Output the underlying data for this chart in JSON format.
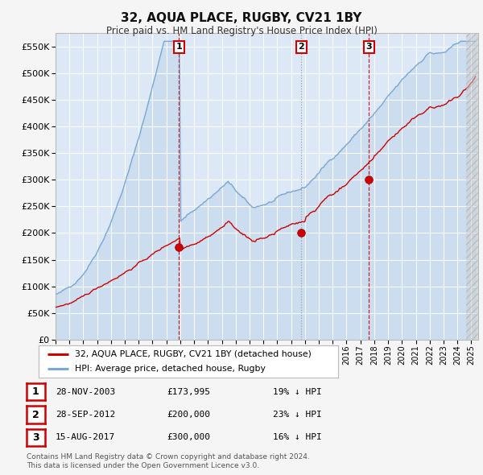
{
  "title": "32, AQUA PLACE, RUGBY, CV21 1BY",
  "subtitle": "Price paid vs. HM Land Registry's House Price Index (HPI)",
  "ylim": [
    0,
    575000
  ],
  "yticks": [
    0,
    50000,
    100000,
    150000,
    200000,
    250000,
    300000,
    350000,
    400000,
    450000,
    500000,
    550000
  ],
  "xlim_start": 1995.0,
  "xlim_end": 2025.5,
  "fig_bg": "#f5f5f5",
  "plot_bg": "#dce8f5",
  "grid_color": "#ffffff",
  "hpi_line_color": "#7aa8d2",
  "hpi_fill_color": "#c5d9ed",
  "price_line_color": "#cc0000",
  "sale_marker_color": "#cc0000",
  "sales": [
    {
      "date_num": 2003.91,
      "price": 173995,
      "label": "1",
      "vcolor": "#cc0000",
      "ls": "--"
    },
    {
      "date_num": 2012.74,
      "price": 200000,
      "label": "2",
      "vcolor": "#999999",
      "ls": ":"
    },
    {
      "date_num": 2017.62,
      "price": 300000,
      "label": "3",
      "vcolor": "#cc0000",
      "ls": "--"
    }
  ],
  "legend_property_label": "32, AQUA PLACE, RUGBY, CV21 1BY (detached house)",
  "legend_hpi_label": "HPI: Average price, detached house, Rugby",
  "table_rows": [
    {
      "num": "1",
      "date": "28-NOV-2003",
      "price": "£173,995",
      "pct": "19% ↓ HPI"
    },
    {
      "num": "2",
      "date": "28-SEP-2012",
      "price": "£200,000",
      "pct": "23% ↓ HPI"
    },
    {
      "num": "3",
      "date": "15-AUG-2017",
      "price": "£300,000",
      "pct": "16% ↓ HPI"
    }
  ],
  "footnote1": "Contains HM Land Registry data © Crown copyright and database right 2024.",
  "footnote2": "This data is licensed under the Open Government Licence v3.0."
}
